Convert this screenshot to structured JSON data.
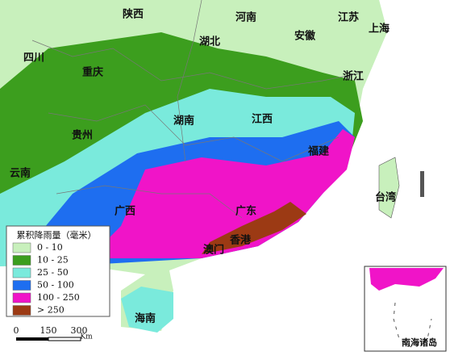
{
  "map": {
    "regions": [
      {
        "label": "陕西"
      },
      {
        "label": "河南"
      },
      {
        "label": "江苏"
      },
      {
        "label": "上海"
      },
      {
        "label": "四川"
      },
      {
        "label": "湖北"
      },
      {
        "label": "安徽"
      },
      {
        "label": "重庆"
      },
      {
        "label": "浙江"
      },
      {
        "label": "湖南"
      },
      {
        "label": "江西"
      },
      {
        "label": "贵州"
      },
      {
        "label": "福建"
      },
      {
        "label": "云南"
      },
      {
        "label": "台湾"
      },
      {
        "label": "广西"
      },
      {
        "label": "广东"
      },
      {
        "label": "香港"
      },
      {
        "label": "澳门"
      },
      {
        "label": "海南"
      }
    ]
  },
  "legend": {
    "title": "累积降雨量（毫米）",
    "items": [
      {
        "label": "0 - 10",
        "color": "#c8f0bc"
      },
      {
        "label": "10 - 25",
        "color": "#3c9e1e"
      },
      {
        "label": "25 - 50",
        "color": "#7aeadc"
      },
      {
        "label": "50 - 100",
        "color": "#1e6ef0"
      },
      {
        "label": "100 - 250",
        "color": "#f014c8"
      },
      {
        "label": "> 250",
        "color": "#9c3a14"
      }
    ]
  },
  "scale_bar": {
    "ticks": [
      "0",
      "150",
      "300"
    ],
    "unit": "Km"
  },
  "inset": {
    "label": "南海诸岛"
  }
}
